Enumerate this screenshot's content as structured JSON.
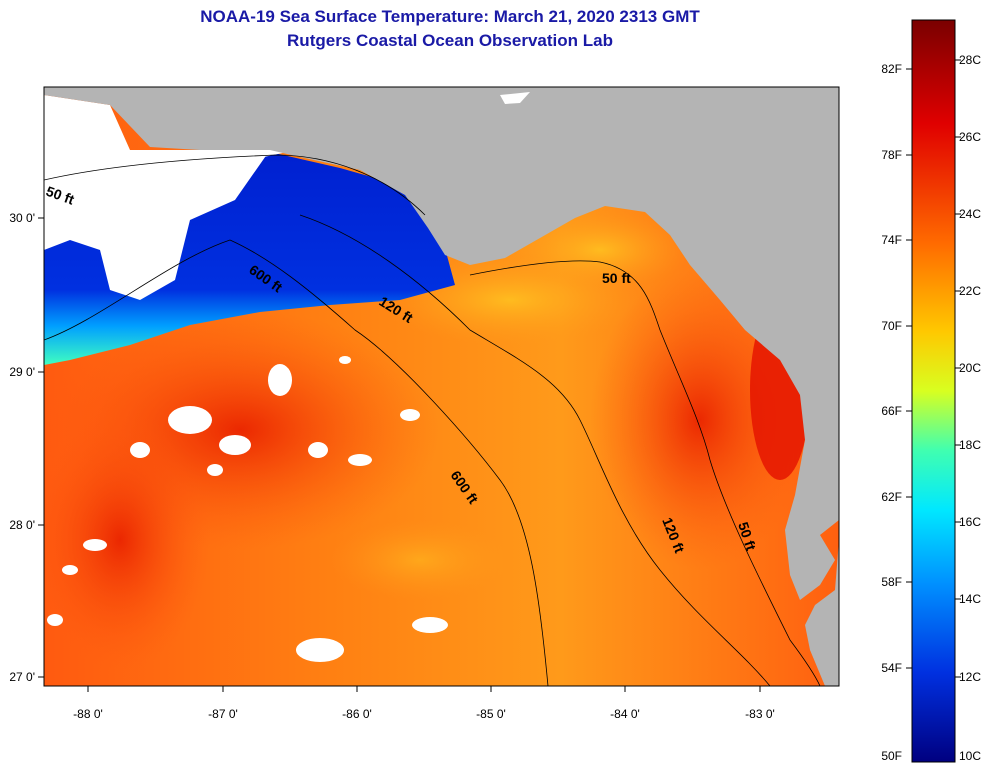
{
  "title": {
    "line1": "NOAA-19 Sea Surface Temperature:  March 21, 2020 2313 GMT",
    "line2": "Rutgers Coastal Ocean Observation Lab"
  },
  "map": {
    "lon_labels": [
      "-88 0'",
      "-87 0'",
      "-86 0'",
      "-85 0'",
      "-84 0'",
      "-83 0'"
    ],
    "lat_labels": [
      "30 0'",
      "29 0'",
      "28 0'",
      "27 0'"
    ],
    "contours": [
      "50 ft",
      "600 ft",
      "120 ft",
      "600 ft",
      "50 ft",
      "120 ft",
      "50 ft"
    ]
  },
  "colorbar": {
    "fahrenheit": [
      "82F",
      "78F",
      "74F",
      "70F",
      "66F",
      "62F",
      "58F",
      "54F",
      "50F"
    ],
    "celsius": [
      "28C",
      "26C",
      "24C",
      "22C",
      "20C",
      "18C",
      "16C",
      "14C",
      "12C",
      "10C"
    ],
    "colors": [
      "#800000",
      "#ff0000",
      "#ff8000",
      "#ffff00",
      "#00ffff",
      "#0080ff",
      "#0000ff",
      "#000080"
    ]
  }
}
